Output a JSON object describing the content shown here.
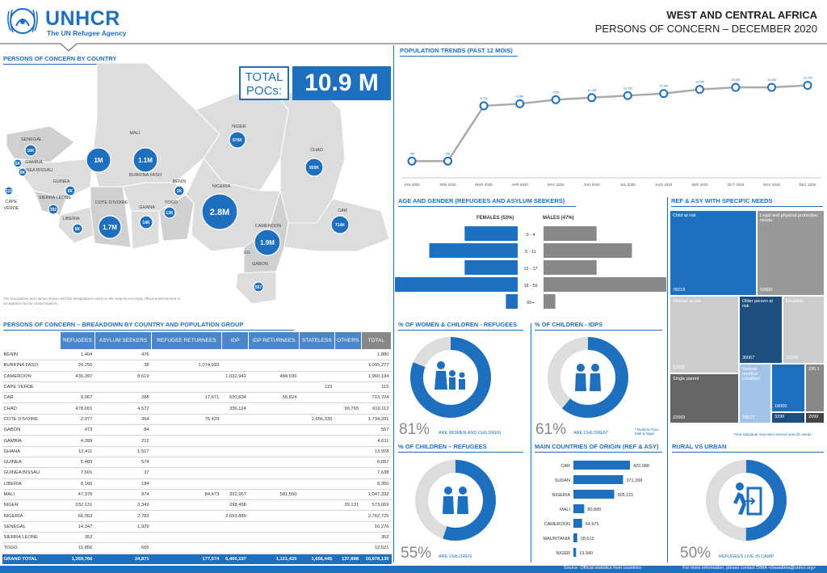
{
  "header": {
    "logo_name": "UNHCR",
    "logo_sub": "The UN Refugee Agency",
    "title": "WEST AND CENTRAL AFRICA",
    "subtitle": "PERSONS OF CONCERN – DECEMBER 2020"
  },
  "map": {
    "section_title": "PERSONS OF CONCERN BY COUNTRY",
    "total_label": "TOTAL POCs:",
    "total_value": "10.9 M",
    "disclaimer": "The boundaries and names shown and the designations used on this map do not imply official endorsement or acceptance by the United Nations.",
    "countries": [
      "SENEGAL",
      "GAMBIA",
      "GUINEA BISSAU",
      "GUINEA",
      "CAPE VERDE",
      "SIERRA LEONE",
      "LIBERIA",
      "COTE D'IVOIRE",
      "MALI",
      "BURKINA FASO",
      "GHANA",
      "TOGO",
      "BENIN",
      "NIGER",
      "NIGERIA",
      "CHAD",
      "CAMEROON",
      "CAR",
      "EG",
      "GABON"
    ],
    "bubbles": [
      "16K",
      "5K",
      "8K",
      "8K",
      "1",
      "1.1K",
      "17K",
      "2K",
      "1M",
      "1.1M",
      "1.7M",
      "13K",
      "6K",
      "2.8M",
      "576K",
      "919K",
      "1.9M",
      "714K",
      "557"
    ]
  },
  "table": {
    "section_title": "PERSONS OF CONCERN – BREAKDOWN BY COUNTRY AND POPULATION GROUP",
    "headers": [
      "REFUGEES",
      "ASYLUM SEEKERS",
      "REFUGEE RETURNEES",
      "IDP",
      "IDP RETURNEES",
      "STATELESS",
      "OTHERS",
      "TOTAL"
    ],
    "rows": [
      [
        "BENIN",
        "1,404",
        "476",
        "",
        "",
        "",
        "",
        "",
        "1,880"
      ],
      [
        "BURKINA FASO",
        "20,250",
        "38",
        "1,074,993",
        "",
        "",
        "",
        "",
        "1,095,277"
      ],
      [
        "CAMEROON",
        "435,397",
        "8,619",
        "",
        "1,032,942",
        "484,036",
        "",
        "",
        "1,960,194"
      ],
      [
        "CAPE VERDE",
        "",
        "",
        "",
        "",
        "",
        "115",
        "",
        "115"
      ],
      [
        "CAR",
        "9,067",
        "288",
        "17,671",
        "630,834",
        "55,824",
        "",
        "",
        "713,704"
      ],
      [
        "CHAD",
        "478,651",
        "4,572",
        "",
        "336,124",
        "",
        "",
        "99,765",
        "919,112"
      ],
      [
        "COTE D'IVOIRE",
        "2,077",
        "364",
        "75,429",
        "",
        "",
        "1,656,330",
        "",
        "1,734,201"
      ],
      [
        "GABON",
        "473",
        "84",
        "",
        "",
        "",
        "",
        "",
        "557"
      ],
      [
        "GAMBIA",
        "4,399",
        "212",
        "",
        "",
        "",
        "",
        "",
        "4,611"
      ],
      [
        "GHANA",
        "12,411",
        "1,517",
        "",
        "",
        "",
        "",
        "",
        "13,928"
      ],
      [
        "GUINEA",
        "5,483",
        "574",
        "",
        "",
        "",
        "",
        "",
        "6,057"
      ],
      [
        "GUINEA BISSAU",
        "7,601",
        "37",
        "",
        "",
        "",
        "",
        "",
        "7,638"
      ],
      [
        "LIBERIA",
        "8,166",
        "184",
        "",
        "",
        "",
        "",
        "",
        "8,350"
      ],
      [
        "MALI",
        "47,378",
        "974",
        "84,473",
        "332,957",
        "581,550",
        "",
        "",
        "1,047,332"
      ],
      [
        "NIGER",
        "232,131",
        "3,349",
        "",
        "298,458",
        "",
        "",
        "39,131",
        "573,069"
      ],
      [
        "NIGERIA",
        "66,053",
        "2,783",
        "",
        "2,693,889",
        "",
        "",
        "",
        "2,762,725"
      ],
      [
        "SENEGAL",
        "14,347",
        "1,929",
        "",
        "",
        "",
        "",
        "",
        "16,276"
      ],
      [
        "SIERRA LEONE",
        "352",
        "",
        "",
        "",
        "",
        "",
        "",
        "352"
      ],
      [
        "TOGO",
        "11,856",
        "665",
        "",
        "",
        "",
        "",
        "",
        "12,521"
      ]
    ],
    "grand": [
      "GRAND TOTAL",
      "1,359,766",
      "24,871",
      "177,574",
      "6,400,197",
      "1,121,420",
      "1,656,445",
      "137,898",
      "10,878,130"
    ]
  },
  "trends": {
    "section_title": "POPULATION TRENDS (PAST 12 MOIS)",
    "chart_data": {
      "type": "line",
      "x": [
        "JAN 2020",
        "FEB 2020",
        "MAR 2020",
        "APR 2020",
        "MAY 2020",
        "JUN 2020",
        "JUL 2020",
        "AUG 2020",
        "SEP 2020",
        "OCT 2020",
        "NOV 2020",
        "DEC 2020"
      ],
      "values": [
        7.0,
        7.0,
        9.7,
        9.8,
        10.0,
        10.1,
        10.2,
        10.3,
        10.5,
        10.6,
        10.6,
        10.7
      ]
    }
  },
  "age_gender": {
    "section_title": "AGE AND GENDER (REFUGEES AND ASYLUM SEEKERS)",
    "females_label": "FEMALES (53%)",
    "males_label": "MALES (47%)",
    "chart_data": {
      "type": "bar",
      "categories": [
        "0 - 4",
        "5 - 11",
        "12 - 17",
        "18 - 59",
        "60+"
      ],
      "series": [
        {
          "name": "FEMALES (53%)",
          "values": [
            9,
            15,
            9,
            24,
            2
          ]
        },
        {
          "name": "MALES (47%)",
          "values": [
            9,
            15,
            9,
            21,
            2
          ]
        }
      ]
    }
  },
  "specific_needs": {
    "section_title": "REF & ASY WITH SPECIFIC NEEDS",
    "cells": [
      {
        "label": "Child at risk",
        "value": "78218"
      },
      {
        "label": "Legal and physical protection needs",
        "value": "59800"
      },
      {
        "label": "Woman at risk",
        "value": "52650"
      },
      {
        "label": "Older person at risk",
        "value": "30067"
      },
      {
        "label": "Disability",
        "value": "29338"
      },
      {
        "label": "Serious medical condition",
        "value": "18527"
      },
      {
        "label": "",
        "value": "18000"
      },
      {
        "label": "",
        "value": "3290"
      },
      {
        "label": "235 1",
        "value": "2099"
      },
      {
        "label": "Single parent",
        "value": "22669"
      }
    ],
    "note": "*One individual may have several specific needs"
  },
  "women_children": {
    "section_title": "% OF WOMEN & CHILDREN - REFUGEES",
    "percent_value": 81,
    "percent": "81%",
    "caption": "ARE WOMEN AND CHILDREN"
  },
  "children_idps": {
    "section_title": "% OF CHILDREN - IDPs",
    "percent_value": 61,
    "percent": "61%",
    "caption": "ARE CHILDREN*",
    "note": "* Burkina Faso Mali & Niger"
  },
  "children_refugees": {
    "section_title": "% OF CHILDREN – REFUGEES",
    "percent_value": 55,
    "percent": "55%",
    "caption": "ARE CHILDREN"
  },
  "origin": {
    "section_title": "MAIN COUNTRIES OF ORIGIN (REF & ASY)",
    "chart_data": {
      "type": "bar",
      "categories": [
        "CAR",
        "SUDAN",
        "NIGERIA",
        "MALI",
        "CAMEROON",
        "MAURITANIA",
        "NIGER"
      ],
      "values": [
        422988,
        371268,
        305121,
        80889,
        64975,
        28612,
        19940
      ],
      "labels": [
        "422,988",
        "371,268",
        "305,121",
        "80,889",
        "64,975",
        "28,612",
        "19,940"
      ]
    }
  },
  "rural_urban": {
    "section_title": "RURAL VS URBAN",
    "percent_value": 50,
    "percent": "50%",
    "caption": "REFUGEES LIVE IN CAMP"
  },
  "footer": {
    "source": "Source: Official statistics from countries",
    "info": "For more information, please contact DIMA <rbwadima@unhcr.org>"
  },
  "colors": {
    "primary": "#1f6fbf",
    "grey": "#999999",
    "dark_blue": "#1d4e7e"
  }
}
